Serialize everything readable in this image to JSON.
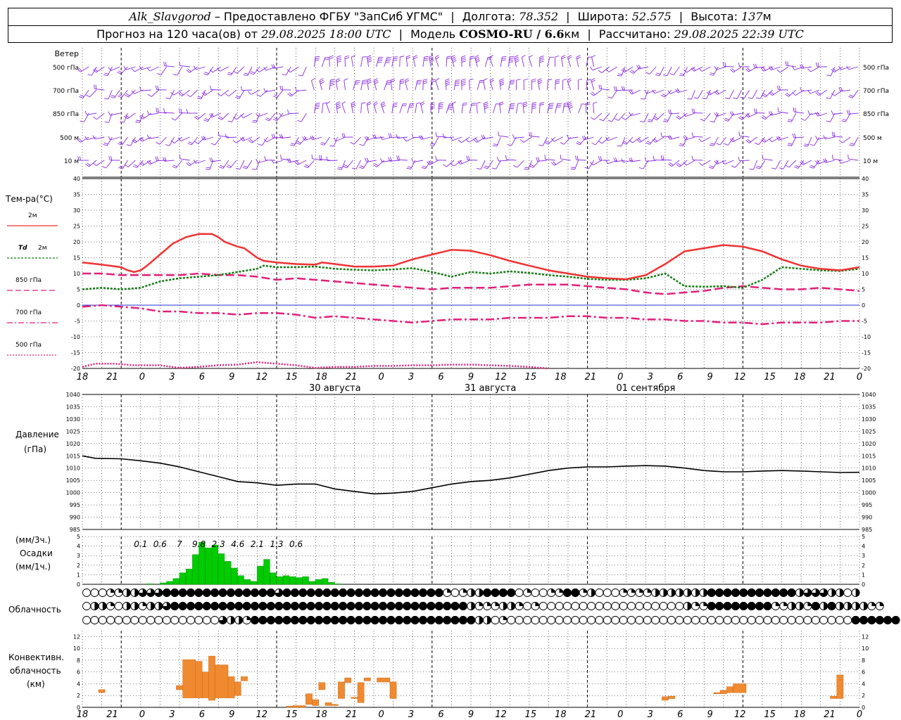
{
  "header": {
    "station": "Alk_Slavgorod",
    "dash": "–",
    "provider": "Предоставлено ФГБУ \"ЗапСиб УГМС\"",
    "lon_label": "Долгота:",
    "lon": "78.352",
    "lat_label": "Широта:",
    "lat": "52.575",
    "alt_label": "Высота:",
    "alt": "137",
    "alt_unit": "м",
    "forecast_label": "Прогноз на 120 часа(ов) от",
    "forecast_start": "29.08.2025 18:00 UTC",
    "model_label": "Модель",
    "model": "COSMO-RU / 6.6",
    "model_unit": "км",
    "calc_label": "Рассчитано:",
    "calc_time": "29.08.2025 22:39 UTC"
  },
  "time_axis": {
    "hour_labels": [
      "18",
      "21",
      "0",
      "3",
      "6",
      "9",
      "12",
      "15",
      "18",
      "21",
      "0",
      "3",
      "6",
      "9",
      "12",
      "15",
      "18",
      "21",
      "0",
      "3",
      "6",
      "9",
      "12",
      "15",
      "18",
      "21",
      "0"
    ],
    "day_labels": [
      {
        "text": "30 августа",
        "hour": 39
      },
      {
        "text": "31 августа",
        "hour": 63
      },
      {
        "text": "01 сентября",
        "hour": 87
      }
    ]
  },
  "colors": {
    "wind": "#8a2be2",
    "t2m": "#ee3333",
    "td": "#117a11",
    "t850": "#e0207a",
    "t700": "#e0207a",
    "t500": "#e0207a",
    "pressure": "#000000",
    "precip": "#00cc00",
    "convective": "#f08a30",
    "zero_line": "#2233cc"
  },
  "wind_panel": {
    "title": "Ветер",
    "levels": [
      "500 гПа",
      "700 гПа",
      "850 гПа",
      "500 м",
      "10   м"
    ]
  },
  "temp_panel": {
    "title": "Тем-ра(°C)",
    "legend": [
      {
        "label": "2м",
        "key": "t2m"
      },
      {
        "label_italic": "Td",
        "label": "2м",
        "key": "td"
      },
      {
        "label": "850 гПа",
        "key": "t850"
      },
      {
        "label": "700 гПа",
        "key": "t700"
      },
      {
        "label": "500 гПа",
        "key": "t500"
      }
    ],
    "yticks": [
      "40",
      "35",
      "30",
      "25",
      "20",
      "15",
      "10",
      "5",
      "0",
      "-5",
      "-10",
      "-15",
      "-20"
    ]
  },
  "pressure_panel": {
    "title": "Давление",
    "unit": "(гПа)",
    "yticks": [
      "1040",
      "1035",
      "1030",
      "1025",
      "1020",
      "1015",
      "1010",
      "1005",
      "1000",
      "995",
      "990",
      "985"
    ]
  },
  "precip_panel": {
    "unit_3h": "(мм/3ч.)",
    "title": "Осадки",
    "unit_1h": "(мм/1ч.)",
    "yticks": [
      "5",
      "4",
      "3",
      "2",
      "1",
      "0"
    ],
    "totals": [
      {
        "text": "0.1",
        "hour": 9
      },
      {
        "text": "0.6",
        "hour": 12
      },
      {
        "text": "7",
        "hour": 15
      },
      {
        "text": "9.8",
        "hour": 18
      },
      {
        "text": "2.3",
        "hour": 21
      },
      {
        "text": "4.6",
        "hour": 24
      },
      {
        "text": "2.1",
        "hour": 27
      },
      {
        "text": "1.3",
        "hour": 30
      },
      {
        "text": "0.6",
        "hour": 33
      }
    ]
  },
  "cloud_panel": {
    "title": "Облачность"
  },
  "conv_panel": {
    "title_1": "Конвективн.",
    "title_2": "облачность",
    "unit": "(км)",
    "yticks": [
      "12",
      "10",
      "8",
      "6",
      "4",
      "2",
      "0"
    ]
  },
  "chart_data": {
    "type": "line",
    "x_hours_from_start": "0..120, start 29.08.2025 18:00 UTC",
    "t2m": [
      [
        0,
        13.5
      ],
      [
        3,
        12.8
      ],
      [
        6,
        12
      ],
      [
        7,
        11
      ],
      [
        8,
        10.5
      ],
      [
        9,
        11
      ],
      [
        10,
        12.5
      ],
      [
        12,
        16
      ],
      [
        14,
        19.5
      ],
      [
        16,
        21.5
      ],
      [
        18,
        22.5
      ],
      [
        20,
        22.5
      ],
      [
        21,
        21.5
      ],
      [
        22,
        20
      ],
      [
        24,
        18.5
      ],
      [
        25,
        18
      ],
      [
        26,
        16.5
      ],
      [
        27,
        15
      ],
      [
        28,
        14
      ],
      [
        30,
        13.5
      ],
      [
        33,
        13
      ],
      [
        36,
        12.8
      ],
      [
        37,
        13.5
      ],
      [
        39,
        13
      ],
      [
        42,
        12.2
      ],
      [
        45,
        12.2
      ],
      [
        48,
        12.5
      ],
      [
        51,
        14.5
      ],
      [
        54,
        16
      ],
      [
        57,
        17.5
      ],
      [
        60,
        17.2
      ],
      [
        63,
        15.8
      ],
      [
        66,
        14
      ],
      [
        69,
        12.5
      ],
      [
        72,
        11
      ],
      [
        75,
        10
      ],
      [
        78,
        9
      ],
      [
        81,
        8.5
      ],
      [
        84,
        8.2
      ],
      [
        87,
        9.5
      ],
      [
        90,
        13
      ],
      [
        93,
        17
      ],
      [
        96,
        18
      ],
      [
        99,
        19
      ],
      [
        102,
        18.5
      ],
      [
        105,
        17
      ],
      [
        108,
        14.5
      ],
      [
        111,
        12.5
      ],
      [
        114,
        11.5
      ],
      [
        117,
        11
      ],
      [
        120,
        12
      ]
    ],
    "td2m": [
      [
        0,
        5
      ],
      [
        3,
        5.5
      ],
      [
        6,
        5
      ],
      [
        9,
        5.5
      ],
      [
        12,
        7.5
      ],
      [
        15,
        8.5
      ],
      [
        18,
        9
      ],
      [
        21,
        9.5
      ],
      [
        24,
        10.5
      ],
      [
        27,
        11.5
      ],
      [
        28,
        12.5
      ],
      [
        30,
        12
      ],
      [
        33,
        12
      ],
      [
        36,
        12.2
      ],
      [
        39,
        11.5
      ],
      [
        42,
        11.2
      ],
      [
        45,
        11
      ],
      [
        48,
        11.3
      ],
      [
        51,
        11.7
      ],
      [
        54,
        10.5
      ],
      [
        57,
        9
      ],
      [
        60,
        10.5
      ],
      [
        63,
        10
      ],
      [
        66,
        10.7
      ],
      [
        69,
        10.2
      ],
      [
        72,
        9.5
      ],
      [
        75,
        9
      ],
      [
        78,
        8.3
      ],
      [
        81,
        8
      ],
      [
        84,
        8
      ],
      [
        87,
        8.5
      ],
      [
        90,
        10
      ],
      [
        93,
        6
      ],
      [
        96,
        5.8
      ],
      [
        99,
        6
      ],
      [
        102,
        5.5
      ],
      [
        105,
        8
      ],
      [
        108,
        12
      ],
      [
        111,
        11.5
      ],
      [
        114,
        11
      ],
      [
        117,
        10.8
      ],
      [
        120,
        11.5
      ]
    ],
    "t850": [
      [
        0,
        10
      ],
      [
        3,
        10
      ],
      [
        6,
        9.5
      ],
      [
        9,
        9.5
      ],
      [
        12,
        9.5
      ],
      [
        15,
        9.5
      ],
      [
        18,
        10
      ],
      [
        21,
        9.5
      ],
      [
        24,
        9.5
      ],
      [
        27,
        9
      ],
      [
        30,
        8
      ],
      [
        33,
        8.5
      ],
      [
        36,
        8
      ],
      [
        39,
        7.5
      ],
      [
        42,
        7
      ],
      [
        45,
        6.5
      ],
      [
        48,
        6
      ],
      [
        51,
        5.5
      ],
      [
        54,
        5
      ],
      [
        57,
        5.5
      ],
      [
        60,
        5.5
      ],
      [
        63,
        5.5
      ],
      [
        66,
        6
      ],
      [
        69,
        6.5
      ],
      [
        72,
        6.5
      ],
      [
        75,
        6.5
      ],
      [
        78,
        6
      ],
      [
        81,
        5.5
      ],
      [
        84,
        5
      ],
      [
        87,
        4
      ],
      [
        90,
        3.5
      ],
      [
        93,
        4
      ],
      [
        96,
        4.5
      ],
      [
        99,
        5.5
      ],
      [
        102,
        6
      ],
      [
        105,
        5.5
      ],
      [
        108,
        5
      ],
      [
        111,
        5
      ],
      [
        114,
        5.5
      ],
      [
        117,
        5
      ],
      [
        120,
        4.5
      ]
    ],
    "t700": [
      [
        0,
        -0.5
      ],
      [
        3,
        0
      ],
      [
        6,
        -0.5
      ],
      [
        9,
        -1
      ],
      [
        12,
        -2
      ],
      [
        15,
        -2
      ],
      [
        18,
        -2.5
      ],
      [
        21,
        -2.5
      ],
      [
        24,
        -3
      ],
      [
        27,
        -2.5
      ],
      [
        30,
        -2.5
      ],
      [
        33,
        -3
      ],
      [
        36,
        -4
      ],
      [
        39,
        -3.5
      ],
      [
        42,
        -4
      ],
      [
        45,
        -4.5
      ],
      [
        48,
        -5
      ],
      [
        51,
        -5.5
      ],
      [
        54,
        -5
      ],
      [
        57,
        -4.5
      ],
      [
        60,
        -4.5
      ],
      [
        63,
        -4.5
      ],
      [
        66,
        -4
      ],
      [
        69,
        -4
      ],
      [
        72,
        -4
      ],
      [
        75,
        -3.5
      ],
      [
        78,
        -3.5
      ],
      [
        81,
        -4
      ],
      [
        84,
        -4
      ],
      [
        87,
        -4.5
      ],
      [
        90,
        -4.5
      ],
      [
        93,
        -5
      ],
      [
        96,
        -5
      ],
      [
        99,
        -5.5
      ],
      [
        102,
        -5.5
      ],
      [
        105,
        -6
      ],
      [
        108,
        -5.5
      ],
      [
        111,
        -5.5
      ],
      [
        114,
        -5.5
      ],
      [
        117,
        -5
      ],
      [
        120,
        -5
      ]
    ],
    "t500": [
      [
        0,
        -19.5
      ],
      [
        2,
        -18.5
      ],
      [
        5,
        -18.5
      ],
      [
        8,
        -19
      ],
      [
        12,
        -19
      ],
      [
        15,
        -19.8
      ],
      [
        18,
        -19.5
      ],
      [
        21,
        -19
      ],
      [
        24,
        -18.8
      ],
      [
        27,
        -18
      ],
      [
        30,
        -18.5
      ],
      [
        33,
        -19
      ],
      [
        36,
        -19.8
      ],
      [
        39,
        -19.5
      ],
      [
        42,
        -19.5
      ],
      [
        45,
        -19.2
      ],
      [
        48,
        -19.2
      ],
      [
        51,
        -19
      ],
      [
        54,
        -19
      ],
      [
        57,
        -18.8
      ],
      [
        60,
        -18.8
      ],
      [
        63,
        -19
      ],
      [
        66,
        -19.2
      ],
      [
        69,
        -19.5
      ],
      [
        72,
        -20
      ]
    ],
    "pressure": [
      [
        0,
        1015
      ],
      [
        2,
        1014
      ],
      [
        6,
        1013.8
      ],
      [
        9,
        1013
      ],
      [
        12,
        1012
      ],
      [
        15,
        1010.5
      ],
      [
        18,
        1008.5
      ],
      [
        21,
        1006.5
      ],
      [
        24,
        1004.5
      ],
      [
        27,
        1004
      ],
      [
        30,
        1003
      ],
      [
        33,
        1003.5
      ],
      [
        36,
        1003.5
      ],
      [
        39,
        1001.5
      ],
      [
        42,
        1000.5
      ],
      [
        45,
        999.5
      ],
      [
        48,
        999.8
      ],
      [
        51,
        1000.5
      ],
      [
        54,
        1002
      ],
      [
        57,
        1003.5
      ],
      [
        60,
        1004.5
      ],
      [
        63,
        1005
      ],
      [
        66,
        1006
      ],
      [
        69,
        1007.5
      ],
      [
        72,
        1009
      ],
      [
        75,
        1010
      ],
      [
        78,
        1010.5
      ],
      [
        81,
        1010.5
      ],
      [
        84,
        1010.8
      ],
      [
        87,
        1011
      ],
      [
        90,
        1010.8
      ],
      [
        93,
        1010
      ],
      [
        96,
        1009
      ],
      [
        99,
        1008.5
      ],
      [
        102,
        1008.5
      ],
      [
        105,
        1008.8
      ],
      [
        108,
        1009
      ],
      [
        111,
        1008.8
      ],
      [
        114,
        1008.5
      ],
      [
        117,
        1008.2
      ],
      [
        120,
        1008.3
      ]
    ],
    "precip_1h": [
      [
        10.5,
        0.05
      ],
      [
        12.5,
        0.15
      ],
      [
        13.5,
        0.3
      ],
      [
        14.5,
        0.6
      ],
      [
        15.5,
        1.2
      ],
      [
        16.5,
        1.6
      ],
      [
        17.5,
        3.1
      ],
      [
        18.5,
        4.4
      ],
      [
        19.5,
        3.8
      ],
      [
        20.5,
        4.1
      ],
      [
        21.5,
        3.2
      ],
      [
        22.5,
        2.4
      ],
      [
        23.5,
        1.7
      ],
      [
        24.5,
        0.9
      ],
      [
        25.5,
        0.5
      ],
      [
        26.5,
        0.3
      ],
      [
        27.5,
        1.9
      ],
      [
        28.5,
        2.6
      ],
      [
        29.5,
        1.2
      ],
      [
        30.5,
        0.8
      ],
      [
        31.5,
        0.9
      ],
      [
        32.5,
        0.8
      ],
      [
        33.5,
        0.7
      ],
      [
        34.5,
        0.8
      ],
      [
        35.5,
        0.3
      ],
      [
        36.5,
        0.5
      ],
      [
        37.5,
        0.6
      ],
      [
        38.5,
        0.2
      ],
      [
        39.5,
        0.05
      ]
    ],
    "convective": [
      [
        2.5,
        3.5,
        2.5,
        3.0
      ],
      [
        14.5,
        15.5,
        3.0,
        3.7
      ],
      [
        15.5,
        17.5,
        1.6,
        8.1
      ],
      [
        17.5,
        18.5,
        1.6,
        7.8
      ],
      [
        18.5,
        19.5,
        1.6,
        6.0
      ],
      [
        19.5,
        20.5,
        1.2,
        8.7
      ],
      [
        20.5,
        22.5,
        1.6,
        7.2
      ],
      [
        22.5,
        23.5,
        1.6,
        5.2
      ],
      [
        23.5,
        24.5,
        2.0,
        4.3
      ],
      [
        24.5,
        25.5,
        4.5,
        5.2
      ],
      [
        31.5,
        32.5,
        0.0,
        0.2
      ],
      [
        32.5,
        34.5,
        0.0,
        0.3
      ],
      [
        34.5,
        35.5,
        0.5,
        2.3
      ],
      [
        35.5,
        36.5,
        0.3,
        1.3
      ],
      [
        36.5,
        37.5,
        3.0,
        4.2
      ],
      [
        37.5,
        38.5,
        0.3,
        0.8
      ],
      [
        38.5,
        39.5,
        0.3,
        0.5
      ],
      [
        39.5,
        40.5,
        1.5,
        4.3
      ],
      [
        40.5,
        41.5,
        4.2,
        5.0
      ],
      [
        41.5,
        42.5,
        1.5,
        1.7
      ],
      [
        42.5,
        43.5,
        0.8,
        4.2
      ],
      [
        43.5,
        44.5,
        4.5,
        5.0
      ],
      [
        45.5,
        47.5,
        4.3,
        5.0
      ],
      [
        47.5,
        48.5,
        1.5,
        4.3
      ],
      [
        89.5,
        90.5,
        1.2,
        1.8
      ],
      [
        90.5,
        91.5,
        1.5,
        1.9
      ],
      [
        97.5,
        98.5,
        2.3,
        2.5
      ],
      [
        98.5,
        99.5,
        2.3,
        2.9
      ],
      [
        99.5,
        100.5,
        2.5,
        3.5
      ],
      [
        100.5,
        102.5,
        2.5,
        4.0
      ],
      [
        115.5,
        116.5,
        1.5,
        1.9
      ],
      [
        116.5,
        117.5,
        1.5,
        5.5
      ]
    ],
    "cloud_low": "0001122333444444444444443444444444444444444441012244440100114412000111122222224444444444423332202",
    "cloud_mid": "0221022122344444444444444444444444444444444444442111221010000000000000000002114444444411221424222211",
    "cloud_high": "000000000000000003221444444444444444444444444444422010000000000000000000000000000000000000000000444444"
  }
}
